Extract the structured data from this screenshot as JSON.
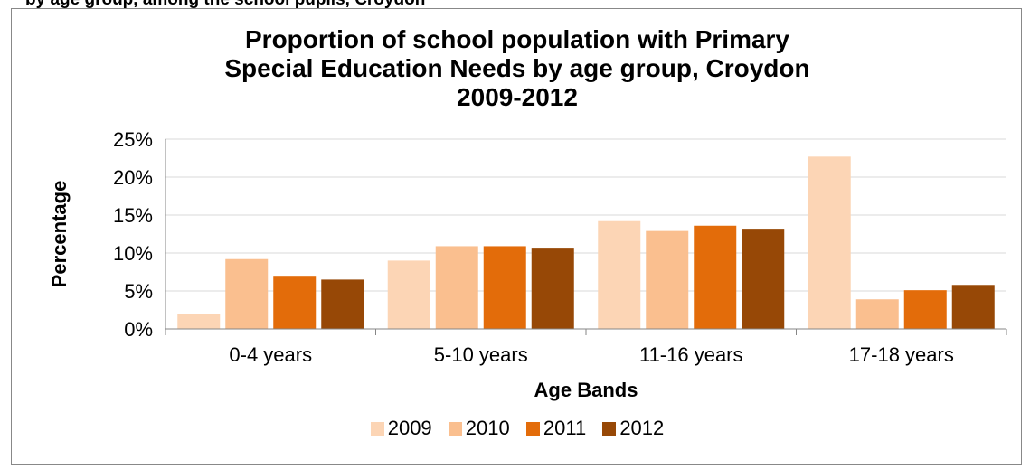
{
  "top_fragment": "by age group, among the school pupils, Croydon",
  "chart_data": {
    "type": "bar",
    "title_lines": [
      "Proportion of school population with Primary",
      "Special Education Needs by age group, Croydon",
      "2009-2012"
    ],
    "xlabel": "Age Bands",
    "ylabel": "Percentage",
    "categories": [
      "0-4 years",
      "5-10 years",
      "11-16 years",
      "17-18 years"
    ],
    "series": [
      {
        "name": "2009",
        "color": "#fcd5b5",
        "values": [
          2.0,
          9.0,
          14.2,
          22.7
        ]
      },
      {
        "name": "2010",
        "color": "#fabf8f",
        "values": [
          9.2,
          10.9,
          12.9,
          3.9
        ]
      },
      {
        "name": "2011",
        "color": "#e36c0a",
        "values": [
          7.0,
          10.9,
          13.6,
          5.1
        ]
      },
      {
        "name": "2012",
        "color": "#974806",
        "values": [
          6.5,
          10.7,
          13.2,
          5.8
        ]
      }
    ],
    "ylim": [
      0,
      25
    ],
    "yticks": [
      0,
      5,
      10,
      15,
      20,
      25
    ],
    "ytick_labels": [
      "0%",
      "5%",
      "10%",
      "15%",
      "20%",
      "25%"
    ],
    "grid": true,
    "legend_position": "bottom"
  }
}
